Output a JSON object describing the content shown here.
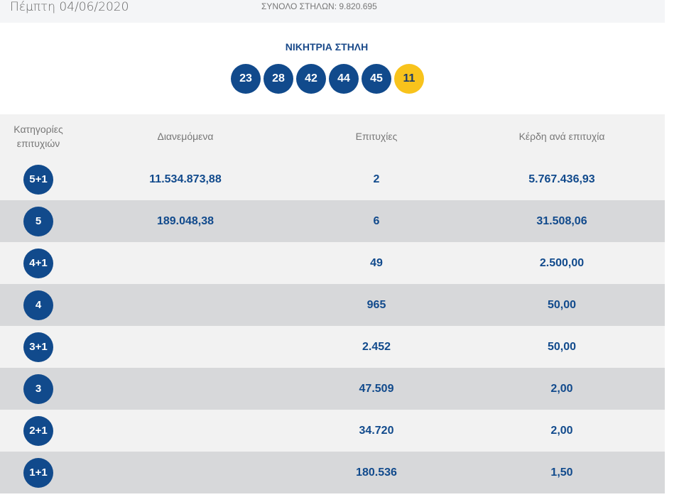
{
  "header": {
    "date": "Πέμπτη 04/06/2020",
    "total_columns": "ΣΥΝΟΛΟ ΣΤΗΛΩΝ: 9.820.695"
  },
  "winning": {
    "title": "ΝΙΚΗΤΡΙΑ ΣΤΗΛΗ",
    "numbers": [
      "23",
      "28",
      "42",
      "44",
      "45"
    ],
    "bonus": "11"
  },
  "table": {
    "headers": [
      "Κατηγορίες επιτυχιών",
      "Διανεμόμενα",
      "Επιτυχίες",
      "Κέρδη ανά επιτυχία"
    ],
    "rows": [
      {
        "category": "5+1",
        "distributed": "11.534.873,88",
        "winners": "2",
        "prize": "5.767.436,93"
      },
      {
        "category": "5",
        "distributed": "189.048,38",
        "winners": "6",
        "prize": "31.508,06"
      },
      {
        "category": "4+1",
        "distributed": "",
        "winners": "49",
        "prize": "2.500,00"
      },
      {
        "category": "4",
        "distributed": "",
        "winners": "965",
        "prize": "50,00"
      },
      {
        "category": "3+1",
        "distributed": "",
        "winners": "2.452",
        "prize": "50,00"
      },
      {
        "category": "3",
        "distributed": "",
        "winners": "47.509",
        "prize": "2,00"
      },
      {
        "category": "2+1",
        "distributed": "",
        "winners": "34.720",
        "prize": "2,00"
      },
      {
        "category": "1+1",
        "distributed": "",
        "winners": "180.536",
        "prize": "1,50"
      }
    ]
  }
}
